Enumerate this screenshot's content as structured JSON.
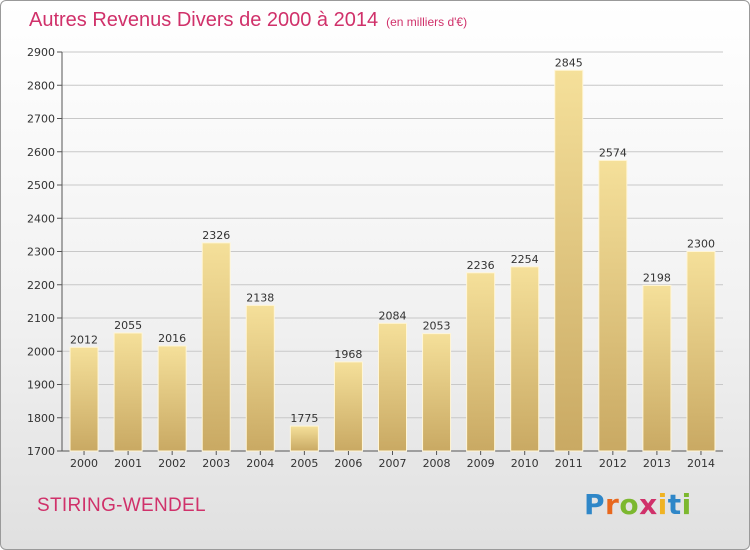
{
  "header": {
    "title": "Autres Revenus Divers de 2000 à 2014",
    "unit": "(en milliers d'€)"
  },
  "footer": {
    "city": "STIRING-WENDEL",
    "logo": "Proxiti"
  },
  "colors": {
    "title": "#d0316a",
    "bar_light": "#f5e09a",
    "bar_dark": "#c9a963",
    "grid": "#c8c8c8"
  },
  "chart_data": {
    "type": "bar",
    "title": "Autres Revenus Divers de 2000 à 2014",
    "subtitle": "(en milliers d'€)",
    "xlabel": "",
    "ylabel": "",
    "categories": [
      "2000",
      "2001",
      "2002",
      "2003",
      "2004",
      "2005",
      "2006",
      "2007",
      "2008",
      "2009",
      "2010",
      "2011",
      "2012",
      "2013",
      "2014"
    ],
    "values": [
      2012,
      2055,
      2016,
      2326,
      2138,
      1775,
      1968,
      2084,
      2053,
      2236,
      2254,
      2845,
      2574,
      2198,
      2300
    ],
    "ylim": [
      1700,
      2900
    ],
    "yticks": [
      1700,
      1800,
      1900,
      2000,
      2100,
      2200,
      2300,
      2400,
      2500,
      2600,
      2700,
      2800,
      2900
    ],
    "grid": true,
    "legend": "none",
    "data_labels": true
  }
}
